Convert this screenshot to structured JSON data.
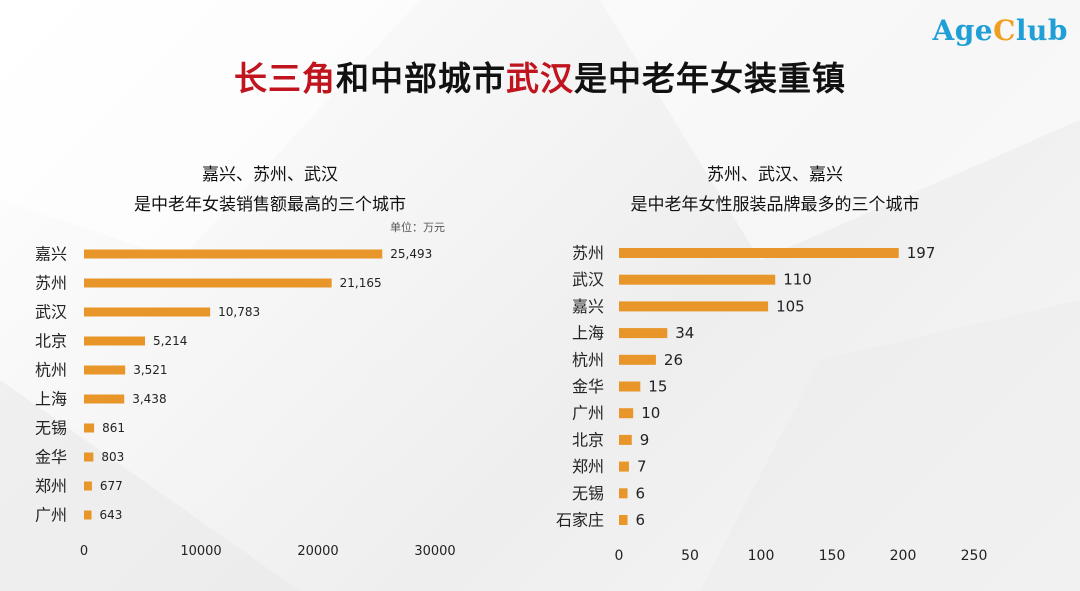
{
  "brand": {
    "part1": "Age",
    "part2": "C",
    "part3": "lub",
    "color_blue": "#1f9fd6",
    "color_orange": "#f0a020"
  },
  "title": {
    "part1": "长三角",
    "part2": "和中部城市",
    "part3": "武汉",
    "part4": "是中老年女装重镇",
    "highlight_color": "#c0141e"
  },
  "bar_color": "#e8952a",
  "chart_data": [
    {
      "type": "bar",
      "orientation": "horizontal",
      "subtitle_line1": "嘉兴、苏州、武汉",
      "subtitle_line2": "是中老年女装销售额最高的三个城市",
      "unit": "单位：万元",
      "categories": [
        "嘉兴",
        "苏州",
        "武汉",
        "北京",
        "杭州",
        "上海",
        "无锡",
        "金华",
        "郑州",
        "广州"
      ],
      "values": [
        25493,
        21165,
        10783,
        5214,
        3521,
        3438,
        861,
        803,
        677,
        643
      ],
      "value_labels": [
        "25,493",
        "21,165",
        "10,783",
        "5,214",
        "3,521",
        "3,438",
        "861",
        "803",
        "677",
        "643"
      ],
      "xlim": [
        0,
        30000
      ],
      "xticks": [
        "0",
        "10000",
        "20000",
        "30000"
      ],
      "grid": false
    },
    {
      "type": "bar",
      "orientation": "horizontal",
      "subtitle_line1": "苏州、武汉、嘉兴",
      "subtitle_line2": "是中老年女性服装品牌最多的三个城市",
      "categories": [
        "苏州",
        "武汉",
        "嘉兴",
        "上海",
        "杭州",
        "金华",
        "广州",
        "北京",
        "郑州",
        "无锡",
        "石家庄"
      ],
      "values": [
        197,
        110,
        105,
        34,
        26,
        15,
        10,
        9,
        7,
        6,
        6
      ],
      "value_labels": [
        "197",
        "110",
        "105",
        "34",
        "26",
        "15",
        "10",
        "9",
        "7",
        "6",
        "6"
      ],
      "xlim": [
        0,
        250
      ],
      "xticks": [
        "0",
        "50",
        "100",
        "150",
        "200",
        "250"
      ],
      "grid": false
    }
  ]
}
